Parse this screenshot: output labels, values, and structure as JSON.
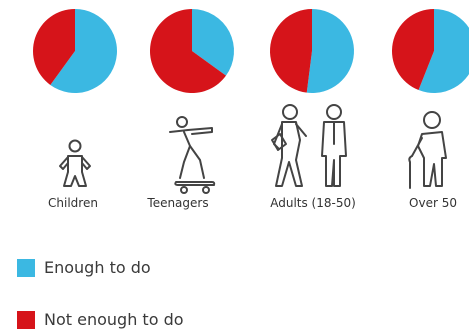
{
  "chart_data": {
    "type": "pie",
    "categories": [
      "Children",
      "Teenagers",
      "Adults (18-50)",
      "Over 50"
    ],
    "series": [
      {
        "name": "Enough to do",
        "values": [
          60,
          35,
          52,
          56
        ]
      },
      {
        "name": "Not enough to do",
        "values": [
          40,
          65,
          48,
          44
        ]
      }
    ],
    "legend_position": "bottom-left"
  },
  "colors": {
    "enough": "#3bb8e2",
    "not_enough": "#d6141a",
    "icon_stroke": "#444444"
  },
  "icons": [
    "child-figure-icon",
    "skateboarder-icon",
    "adults-pair-icon",
    "elderly-with-cane-icon"
  ],
  "legend": {
    "items": [
      {
        "label": "Enough to do",
        "color": "#3bb8e2"
      },
      {
        "label": "Not enough to do",
        "color": "#d6141a"
      }
    ]
  }
}
